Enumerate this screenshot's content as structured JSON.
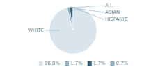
{
  "chart_data": {
    "type": "pie",
    "categories": [
      "WHITE",
      "A.I.",
      "ASIAN",
      "HISPANIC"
    ],
    "values": [
      96.0,
      1.7,
      1.7,
      0.7
    ],
    "value_labels": [
      "96.0%",
      "1.7%",
      "1.7%",
      "0.7%"
    ],
    "colors": [
      "#d9e4ec",
      "#8bafc5",
      "#2d5f7c",
      "#8aafc4"
    ],
    "legend": "bottom"
  }
}
